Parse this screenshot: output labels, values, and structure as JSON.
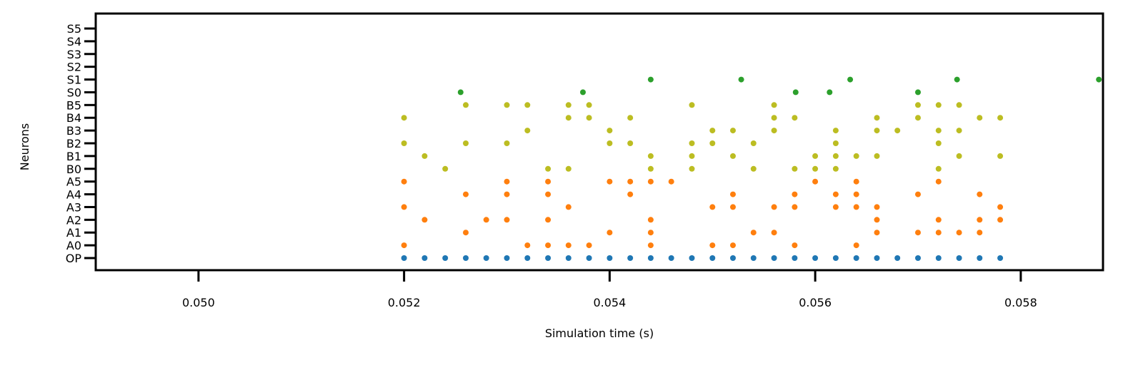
{
  "chart_data": {
    "type": "scatter",
    "title": "",
    "xlabel": "Simulation time (s)",
    "ylabel": "Neurons",
    "xlim": [
      0.049,
      0.0588
    ],
    "xticks": [
      "0.050",
      "0.052",
      "0.054",
      "0.056",
      "0.058"
    ],
    "xtick_values": [
      0.05,
      0.052,
      0.054,
      0.056,
      0.058
    ],
    "categories": [
      "OP",
      "A0",
      "A1",
      "A2",
      "A3",
      "A4",
      "A5",
      "B0",
      "B1",
      "B2",
      "B3",
      "B4",
      "B5",
      "S0",
      "S1",
      "S2",
      "S3",
      "S4",
      "S5"
    ],
    "grid": false,
    "series": [
      {
        "color": "#1f77b4",
        "points": [
          [
            0.052,
            "OP"
          ],
          [
            0.0522,
            "OP"
          ],
          [
            0.0524,
            "OP"
          ],
          [
            0.0526,
            "OP"
          ],
          [
            0.0528,
            "OP"
          ],
          [
            0.053,
            "OP"
          ],
          [
            0.0532,
            "OP"
          ],
          [
            0.0534,
            "OP"
          ],
          [
            0.0536,
            "OP"
          ],
          [
            0.0538,
            "OP"
          ],
          [
            0.054,
            "OP"
          ],
          [
            0.0542,
            "OP"
          ],
          [
            0.0544,
            "OP"
          ],
          [
            0.0546,
            "OP"
          ],
          [
            0.0548,
            "OP"
          ],
          [
            0.055,
            "OP"
          ],
          [
            0.0552,
            "OP"
          ],
          [
            0.0554,
            "OP"
          ],
          [
            0.0556,
            "OP"
          ],
          [
            0.0558,
            "OP"
          ],
          [
            0.056,
            "OP"
          ],
          [
            0.0562,
            "OP"
          ],
          [
            0.0564,
            "OP"
          ],
          [
            0.0566,
            "OP"
          ],
          [
            0.0568,
            "OP"
          ],
          [
            0.057,
            "OP"
          ],
          [
            0.0572,
            "OP"
          ],
          [
            0.0574,
            "OP"
          ],
          [
            0.0576,
            "OP"
          ],
          [
            0.0578,
            "OP"
          ]
        ]
      },
      {
        "color": "#ff7f0e",
        "points": [
          [
            0.052,
            "A0"
          ],
          [
            0.0532,
            "A0"
          ],
          [
            0.0534,
            "A0"
          ],
          [
            0.0536,
            "A0"
          ],
          [
            0.0538,
            "A0"
          ],
          [
            0.0544,
            "A0"
          ],
          [
            0.055,
            "A0"
          ],
          [
            0.0552,
            "A0"
          ],
          [
            0.0558,
            "A0"
          ],
          [
            0.0564,
            "A0"
          ],
          [
            0.0526,
            "A1"
          ],
          [
            0.054,
            "A1"
          ],
          [
            0.0544,
            "A1"
          ],
          [
            0.0554,
            "A1"
          ],
          [
            0.0556,
            "A1"
          ],
          [
            0.0566,
            "A1"
          ],
          [
            0.057,
            "A1"
          ],
          [
            0.0572,
            "A1"
          ],
          [
            0.0574,
            "A1"
          ],
          [
            0.0576,
            "A1"
          ],
          [
            0.0522,
            "A2"
          ],
          [
            0.0528,
            "A2"
          ],
          [
            0.053,
            "A2"
          ],
          [
            0.0534,
            "A2"
          ],
          [
            0.0544,
            "A2"
          ],
          [
            0.0566,
            "A2"
          ],
          [
            0.0572,
            "A2"
          ],
          [
            0.0576,
            "A2"
          ],
          [
            0.0578,
            "A2"
          ],
          [
            0.052,
            "A3"
          ],
          [
            0.0536,
            "A3"
          ],
          [
            0.055,
            "A3"
          ],
          [
            0.0552,
            "A3"
          ],
          [
            0.0556,
            "A3"
          ],
          [
            0.0558,
            "A3"
          ],
          [
            0.0562,
            "A3"
          ],
          [
            0.0564,
            "A3"
          ],
          [
            0.0566,
            "A3"
          ],
          [
            0.0578,
            "A3"
          ],
          [
            0.0526,
            "A4"
          ],
          [
            0.053,
            "A4"
          ],
          [
            0.0534,
            "A4"
          ],
          [
            0.0542,
            "A4"
          ],
          [
            0.0552,
            "A4"
          ],
          [
            0.0558,
            "A4"
          ],
          [
            0.0562,
            "A4"
          ],
          [
            0.0564,
            "A4"
          ],
          [
            0.057,
            "A4"
          ],
          [
            0.0576,
            "A4"
          ],
          [
            0.052,
            "A5"
          ],
          [
            0.053,
            "A5"
          ],
          [
            0.0534,
            "A5"
          ],
          [
            0.054,
            "A5"
          ],
          [
            0.0542,
            "A5"
          ],
          [
            0.0544,
            "A5"
          ],
          [
            0.0546,
            "A5"
          ],
          [
            0.056,
            "A5"
          ],
          [
            0.0564,
            "A5"
          ],
          [
            0.0572,
            "A5"
          ]
        ]
      },
      {
        "color": "#bcbd22",
        "points": [
          [
            0.0524,
            "B0"
          ],
          [
            0.0534,
            "B0"
          ],
          [
            0.0536,
            "B0"
          ],
          [
            0.0544,
            "B0"
          ],
          [
            0.0548,
            "B0"
          ],
          [
            0.0554,
            "B0"
          ],
          [
            0.0558,
            "B0"
          ],
          [
            0.056,
            "B0"
          ],
          [
            0.0562,
            "B0"
          ],
          [
            0.0572,
            "B0"
          ],
          [
            0.0522,
            "B1"
          ],
          [
            0.0544,
            "B1"
          ],
          [
            0.0548,
            "B1"
          ],
          [
            0.0552,
            "B1"
          ],
          [
            0.056,
            "B1"
          ],
          [
            0.0562,
            "B1"
          ],
          [
            0.0564,
            "B1"
          ],
          [
            0.0566,
            "B1"
          ],
          [
            0.0574,
            "B1"
          ],
          [
            0.0578,
            "B1"
          ],
          [
            0.052,
            "B2"
          ],
          [
            0.0526,
            "B2"
          ],
          [
            0.053,
            "B2"
          ],
          [
            0.054,
            "B2"
          ],
          [
            0.0542,
            "B2"
          ],
          [
            0.0548,
            "B2"
          ],
          [
            0.055,
            "B2"
          ],
          [
            0.0554,
            "B2"
          ],
          [
            0.0562,
            "B2"
          ],
          [
            0.0572,
            "B2"
          ],
          [
            0.0532,
            "B3"
          ],
          [
            0.054,
            "B3"
          ],
          [
            0.055,
            "B3"
          ],
          [
            0.0552,
            "B3"
          ],
          [
            0.0556,
            "B3"
          ],
          [
            0.0562,
            "B3"
          ],
          [
            0.0566,
            "B3"
          ],
          [
            0.0568,
            "B3"
          ],
          [
            0.0572,
            "B3"
          ],
          [
            0.0574,
            "B3"
          ],
          [
            0.052,
            "B4"
          ],
          [
            0.0536,
            "B4"
          ],
          [
            0.0538,
            "B4"
          ],
          [
            0.0542,
            "B4"
          ],
          [
            0.0556,
            "B4"
          ],
          [
            0.0558,
            "B4"
          ],
          [
            0.0566,
            "B4"
          ],
          [
            0.057,
            "B4"
          ],
          [
            0.0576,
            "B4"
          ],
          [
            0.0578,
            "B4"
          ],
          [
            0.0526,
            "B5"
          ],
          [
            0.053,
            "B5"
          ],
          [
            0.0532,
            "B5"
          ],
          [
            0.0536,
            "B5"
          ],
          [
            0.0538,
            "B5"
          ],
          [
            0.0548,
            "B5"
          ],
          [
            0.0556,
            "B5"
          ],
          [
            0.057,
            "B5"
          ],
          [
            0.0572,
            "B5"
          ],
          [
            0.0574,
            "B5"
          ]
        ]
      },
      {
        "color": "#2ca02c",
        "points": [
          [
            0.05255,
            "S0"
          ],
          [
            0.05374,
            "S0"
          ],
          [
            0.05581,
            "S0"
          ],
          [
            0.05614,
            "S0"
          ],
          [
            0.057,
            "S0"
          ],
          [
            0.0544,
            "S1"
          ],
          [
            0.05528,
            "S1"
          ],
          [
            0.05634,
            "S1"
          ],
          [
            0.05738,
            "S1"
          ],
          [
            0.05876,
            "S1"
          ]
        ]
      }
    ]
  }
}
